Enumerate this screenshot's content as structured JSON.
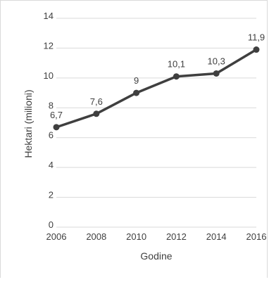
{
  "chart_data": {
    "type": "line",
    "title": "",
    "xlabel": "Godine",
    "ylabel": "Hektari (milioni)",
    "x": [
      "2006",
      "2008",
      "2010",
      "2012",
      "2014",
      "2016"
    ],
    "series": [
      {
        "values": [
          6.7,
          7.6,
          9,
          10.1,
          10.3,
          11.9
        ],
        "data_labels": [
          "6,7",
          "7,6",
          "9",
          "10,1",
          "10,3",
          "11,9"
        ]
      }
    ],
    "ylim": [
      0,
      14
    ],
    "yticks": [
      0,
      2,
      4,
      6,
      8,
      10,
      12,
      14
    ],
    "ytick_labels": [
      "0",
      "2",
      "4",
      "6",
      "8",
      "10",
      "12",
      "14"
    ],
    "grid": true,
    "legend": "none",
    "colors": {
      "line": "#3f3f3f",
      "grid": "#d9d9d9",
      "text": "#404040"
    }
  }
}
